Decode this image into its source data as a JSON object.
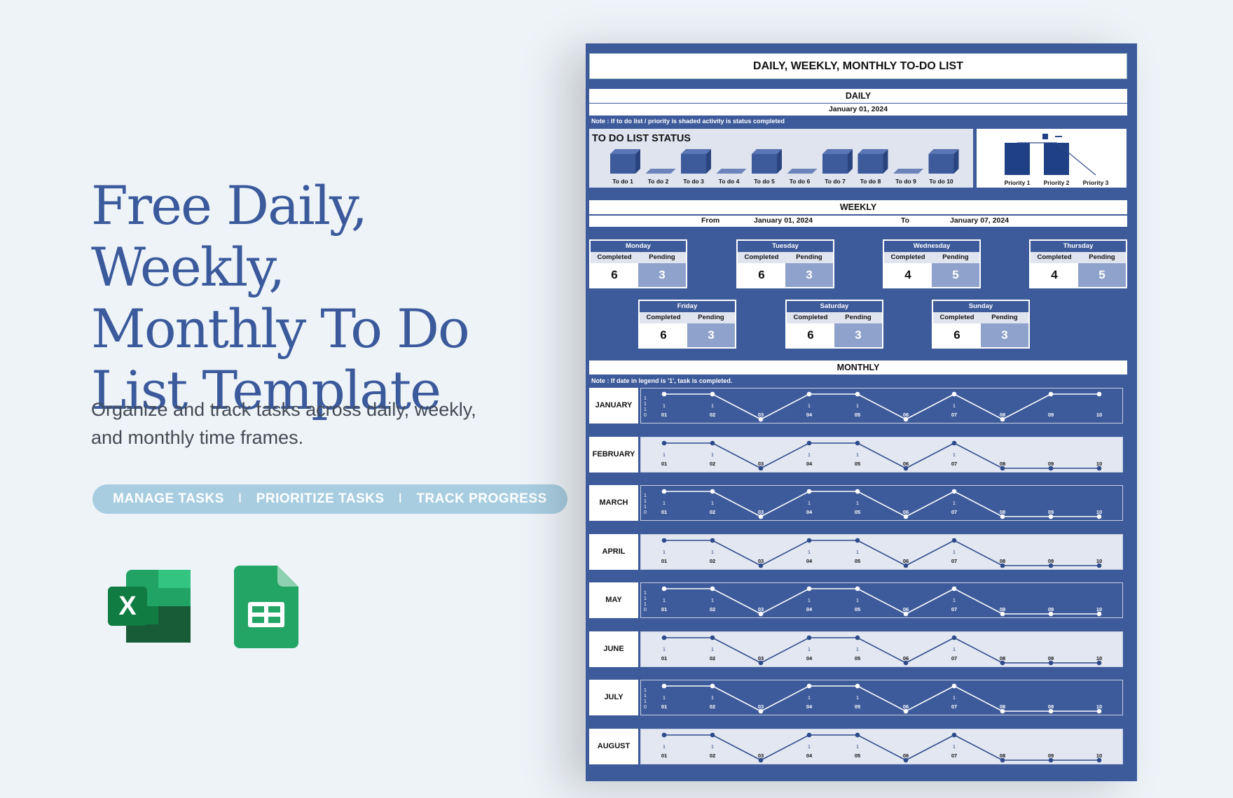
{
  "hero": {
    "title_line1": "Free Daily, Weekly,",
    "title_line2": "Monthly To Do",
    "title_line3": "List Template",
    "subtitle_line1": "Organize and track tasks across daily, weekly,",
    "subtitle_line2": "and monthly time frames.",
    "tags": [
      "MANAGE TASKS",
      "PRIORITIZE TASKS",
      "TRACK PROGRESS"
    ],
    "tag_separator": "I"
  },
  "apps": {
    "excel_letter": "X"
  },
  "sheet": {
    "title": "DAILY, WEEKLY, MONTHLY TO-DO LIST",
    "daily": {
      "heading": "DAILY",
      "date": "January 01, 2024",
      "note": "Note : If to do list  / priority is shaded activity is status completed",
      "status_label": "TO DO LIST STATUS"
    },
    "weekly": {
      "heading": "WEEKLY",
      "from_label": "From",
      "from_date": "January 01, 2024",
      "to_label": "To",
      "to_date": "January 07, 2024",
      "completed_label": "Completed",
      "pending_label": "Pending",
      "days": [
        {
          "name": "Monday",
          "completed": "6",
          "pending": "3"
        },
        {
          "name": "Tuesday",
          "completed": "6",
          "pending": "3"
        },
        {
          "name": "Wednesday",
          "completed": "4",
          "pending": "5"
        },
        {
          "name": "Thursday",
          "completed": "4",
          "pending": "5"
        },
        {
          "name": "Friday",
          "completed": "6",
          "pending": "3"
        },
        {
          "name": "Saturday",
          "completed": "6",
          "pending": "3"
        },
        {
          "name": "Sunday",
          "completed": "6",
          "pending": "3"
        }
      ]
    },
    "monthly": {
      "heading": "MONTHLY",
      "note": "Note : If date  in legend is '1',  task is completed.",
      "months": [
        "JANUARY",
        "FEBRUARY",
        "MARCH",
        "APRIL",
        "MAY",
        "JUNE",
        "JULY",
        "AUGUST"
      ]
    }
  },
  "chart_data": [
    {
      "type": "bar",
      "title": "TO DO LIST STATUS",
      "categories": [
        "To do 1",
        "To do 2",
        "To do 3",
        "To do 4",
        "To do 5",
        "To do 6",
        "To do 7",
        "To do 8",
        "To do 9",
        "To do 10"
      ],
      "values": [
        1,
        0,
        1,
        0,
        1,
        0,
        1,
        1,
        0,
        1
      ],
      "ylim": [
        0,
        1
      ],
      "colors": {
        "bar": "#3d5a9a",
        "background": "#dfe4ef"
      }
    },
    {
      "type": "bar",
      "categories": [
        "Priority 1",
        "Priority 2",
        "Priority 3"
      ],
      "values": [
        1,
        1,
        0
      ],
      "ylim": [
        0,
        1
      ],
      "colors": {
        "bar": "#1f4085",
        "line": "#2d4a8a"
      }
    },
    {
      "type": "line",
      "categories": [
        "01",
        "02",
        "03",
        "04",
        "05",
        "06",
        "07",
        "08",
        "09",
        "10"
      ],
      "y_labels": [
        "1",
        "1",
        "1",
        "0"
      ],
      "series": [
        {
          "values": [
            1,
            1,
            0,
            1,
            1,
            0,
            1,
            0,
            1,
            1
          ]
        },
        {
          "values": [
            1,
            1,
            0,
            1,
            1,
            0,
            1,
            0,
            0,
            0
          ]
        },
        {
          "values": [
            1,
            1,
            0,
            1,
            1,
            0,
            1,
            0,
            0,
            0
          ]
        },
        {
          "values": [
            1,
            1,
            0,
            1,
            1,
            0,
            1,
            0,
            0,
            0
          ]
        },
        {
          "values": [
            1,
            1,
            0,
            1,
            1,
            0,
            1,
            0,
            0,
            0
          ]
        },
        {
          "values": [
            1,
            1,
            0,
            1,
            1,
            0,
            1,
            0,
            0,
            0
          ]
        },
        {
          "values": [
            1,
            1,
            0,
            1,
            1,
            0,
            1,
            0,
            0,
            0
          ]
        },
        {
          "values": [
            1,
            1,
            0,
            1,
            1,
            0,
            1,
            0,
            0,
            0
          ]
        }
      ],
      "point_labels": [
        "1",
        "1",
        "",
        "1",
        "1",
        "",
        "1",
        "",
        "",
        ""
      ],
      "colors": {
        "dark_row_bg": "#3d5a9a",
        "light_row_bg": "#e3e7f1",
        "dark_row_line": "#ffffff",
        "light_row_line": "#2d4a8a"
      }
    }
  ]
}
